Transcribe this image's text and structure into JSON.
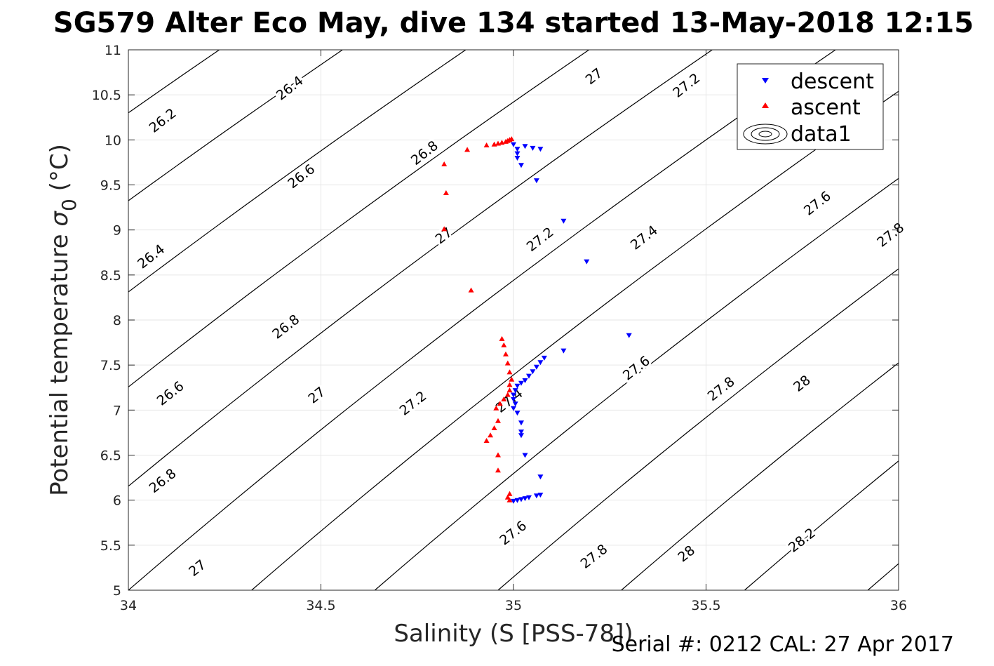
{
  "chart_data": {
    "type": "scatter",
    "title": "SG579 Alter Eco May, dive 134 started 13-May-2018 12:15",
    "xlabel": "Salinity (S [PSS-78])",
    "ylabel_main": "Potential temperature ",
    "ylabel_sigma": "σ",
    "ylabel_sub": "0",
    "ylabel_unit": " (°C)",
    "footer": "Serial #: 0212  CAL: 27 Apr 2017",
    "xlim": [
      34,
      36
    ],
    "ylim": [
      5,
      11
    ],
    "xticks": [
      34,
      34.5,
      35,
      35.5,
      36
    ],
    "xtick_labels": [
      "34",
      "34.5",
      "35",
      "35.5",
      "36"
    ],
    "yticks": [
      5,
      5.5,
      6,
      6.5,
      7,
      7.5,
      8,
      8.5,
      9,
      9.5,
      10,
      10.5,
      11
    ],
    "ytick_labels": [
      "5",
      "5.5",
      "6",
      "6.5",
      "7",
      "7.5",
      "8",
      "8.5",
      "9",
      "9.5",
      "10",
      "10.5",
      "11"
    ],
    "grid": true,
    "legend_position": "top-right",
    "legend": [
      "descent",
      "ascent",
      "data1"
    ],
    "series": [
      {
        "name": "descent",
        "marker": "triangle-down",
        "color": "#0000ff",
        "points": [
          [
            35.03,
            9.93
          ],
          [
            35.0,
            9.95
          ],
          [
            35.01,
            9.9
          ],
          [
            35.01,
            9.85
          ],
          [
            35.01,
            9.8
          ],
          [
            35.02,
            9.72
          ],
          [
            35.05,
            9.91
          ],
          [
            35.07,
            9.9
          ],
          [
            35.06,
            9.55
          ],
          [
            35.13,
            9.1
          ],
          [
            35.19,
            8.65
          ],
          [
            35.3,
            7.83
          ],
          [
            35.13,
            7.66
          ],
          [
            35.08,
            7.58
          ],
          [
            35.07,
            7.53
          ],
          [
            35.06,
            7.48
          ],
          [
            35.05,
            7.43
          ],
          [
            35.04,
            7.38
          ],
          [
            35.03,
            7.33
          ],
          [
            35.02,
            7.3
          ],
          [
            35.01,
            7.27
          ],
          [
            35.005,
            7.22
          ],
          [
            35.0,
            7.17
          ],
          [
            35.0,
            7.12
          ],
          [
            35.005,
            7.07
          ],
          [
            35.0,
            7.02
          ],
          [
            35.01,
            6.97
          ],
          [
            35.02,
            6.86
          ],
          [
            35.02,
            6.76
          ],
          [
            35.02,
            6.72
          ],
          [
            35.03,
            6.5
          ],
          [
            35.07,
            6.26
          ],
          [
            35.07,
            6.06
          ],
          [
            35.06,
            6.05
          ],
          [
            35.04,
            6.03
          ],
          [
            35.03,
            6.02
          ],
          [
            35.02,
            6.01
          ],
          [
            35.01,
            6.0
          ],
          [
            35.0,
            5.99
          ]
        ]
      },
      {
        "name": "ascent",
        "marker": "triangle-up",
        "color": "#ff0000",
        "points": [
          [
            34.995,
            10.01
          ],
          [
            34.99,
            10.0
          ],
          [
            34.985,
            9.99
          ],
          [
            34.98,
            9.98
          ],
          [
            34.97,
            9.97
          ],
          [
            34.96,
            9.96
          ],
          [
            34.95,
            9.95
          ],
          [
            34.93,
            9.94
          ],
          [
            34.88,
            9.89
          ],
          [
            34.82,
            9.73
          ],
          [
            34.825,
            9.41
          ],
          [
            34.82,
            9.01
          ],
          [
            34.89,
            8.33
          ],
          [
            34.97,
            7.79
          ],
          [
            34.975,
            7.72
          ],
          [
            34.98,
            7.62
          ],
          [
            34.985,
            7.52
          ],
          [
            34.99,
            7.42
          ],
          [
            34.995,
            7.34
          ],
          [
            34.99,
            7.28
          ],
          [
            34.99,
            7.22
          ],
          [
            34.985,
            7.17
          ],
          [
            34.975,
            7.12
          ],
          [
            34.965,
            7.07
          ],
          [
            34.955,
            7.02
          ],
          [
            34.96,
            6.88
          ],
          [
            34.95,
            6.8
          ],
          [
            34.94,
            6.72
          ],
          [
            34.93,
            6.66
          ],
          [
            34.96,
            6.5
          ],
          [
            34.96,
            6.33
          ],
          [
            34.99,
            6.07
          ],
          [
            34.985,
            6.03
          ],
          [
            34.99,
            6.0
          ]
        ]
      }
    ],
    "contour_labels": [
      {
        "text": "26.2",
        "x": 34.09,
        "y": 10.21,
        "angle": -38
      },
      {
        "text": "26.4",
        "x": 34.42,
        "y": 10.57,
        "angle": -38
      },
      {
        "text": "26.4",
        "x": 34.06,
        "y": 8.7,
        "angle": -38
      },
      {
        "text": "26.6",
        "x": 34.45,
        "y": 9.59,
        "angle": -38
      },
      {
        "text": "26.6",
        "x": 34.11,
        "y": 7.18,
        "angle": -38
      },
      {
        "text": "26.8",
        "x": 34.77,
        "y": 9.85,
        "angle": -38
      },
      {
        "text": "26.8",
        "x": 34.41,
        "y": 7.92,
        "angle": -38
      },
      {
        "text": "26.8",
        "x": 34.09,
        "y": 6.21,
        "angle": -38
      },
      {
        "text": "27",
        "x": 35.21,
        "y": 10.7,
        "angle": -38
      },
      {
        "text": "27",
        "x": 34.82,
        "y": 8.93,
        "angle": -38
      },
      {
        "text": "27",
        "x": 34.49,
        "y": 7.16,
        "angle": -38
      },
      {
        "text": "27",
        "x": 34.18,
        "y": 5.24,
        "angle": -38
      },
      {
        "text": "27.2",
        "x": 35.45,
        "y": 10.6,
        "angle": -38
      },
      {
        "text": "27.2",
        "x": 35.07,
        "y": 8.89,
        "angle": -38
      },
      {
        "text": "27.2",
        "x": 34.74,
        "y": 7.07,
        "angle": -38
      },
      {
        "text": "27.4",
        "x": 35.34,
        "y": 8.91,
        "angle": -38
      },
      {
        "text": "27.4",
        "x": 34.99,
        "y": 7.1,
        "angle": -38
      },
      {
        "text": "27.6",
        "x": 35.79,
        "y": 9.29,
        "angle": -38
      },
      {
        "text": "27.6",
        "x": 35.32,
        "y": 7.46,
        "angle": -38
      },
      {
        "text": "27.6",
        "x": 35.0,
        "y": 5.63,
        "angle": -38
      },
      {
        "text": "27.8",
        "x": 35.98,
        "y": 8.94,
        "angle": -38
      },
      {
        "text": "27.8",
        "x": 35.54,
        "y": 7.23,
        "angle": -38
      },
      {
        "text": "27.8",
        "x": 35.21,
        "y": 5.37,
        "angle": -38
      },
      {
        "text": "28",
        "x": 35.75,
        "y": 7.29,
        "angle": -38
      },
      {
        "text": "28",
        "x": 35.45,
        "y": 5.4,
        "angle": -38
      },
      {
        "text": "28.2",
        "x": 35.75,
        "y": 5.55,
        "angle": -38
      }
    ]
  }
}
